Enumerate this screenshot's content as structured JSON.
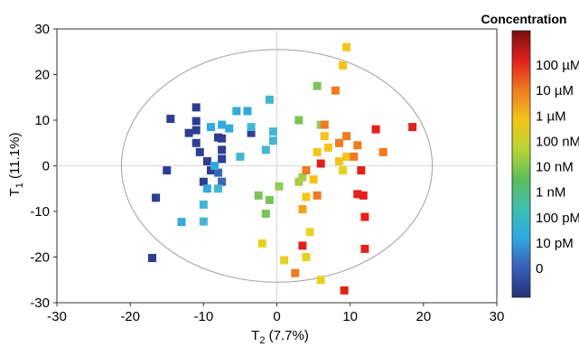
{
  "chart_data": {
    "type": "scatter",
    "xlabel_main": "T",
    "xlabel_sub": "2",
    "xlabel_rest": " (7.7%)",
    "ylabel_main": "T",
    "ylabel_sub": "1",
    "ylabel_rest": " (11.1%)",
    "xlim": [
      -30,
      30
    ],
    "ylim": [
      -30,
      30
    ],
    "xticks": [
      -30,
      -20,
      -10,
      0,
      10,
      20,
      30
    ],
    "yticks": [
      -30,
      -20,
      -10,
      0,
      10,
      20,
      30
    ],
    "grid": false,
    "zero_lines": true,
    "confidence_ellipse": {
      "center": [
        0,
        0
      ],
      "rx": 21.2,
      "ry": 25.5
    },
    "colorbar": {
      "title": "Concentration",
      "labels": [
        "100 µM",
        "10 µM",
        "1 µM",
        "100 nM",
        "10 nM",
        "1 nM",
        "100 pM",
        "10 pM",
        "0"
      ],
      "colors": [
        "#7b0e12",
        "#e3201b",
        "#f07a1f",
        "#f2c419",
        "#b8d432",
        "#5cbd5a",
        "#3cbfb0",
        "#2ea8e0",
        "#3a5fb8",
        "#24317a"
      ]
    },
    "points": [
      {
        "x": -17,
        "y": -20.2,
        "c": "#2d3e93"
      },
      {
        "x": -16.5,
        "y": -7,
        "c": "#2d3e93"
      },
      {
        "x": -15,
        "y": -1,
        "c": "#2d3e93"
      },
      {
        "x": -14.5,
        "y": 10.3,
        "c": "#2d3e93"
      },
      {
        "x": -12,
        "y": 7.2,
        "c": "#2d3e93"
      },
      {
        "x": -11,
        "y": 12.8,
        "c": "#2d3e93"
      },
      {
        "x": -11,
        "y": 9.8,
        "c": "#2d3e93"
      },
      {
        "x": -11,
        "y": 7.8,
        "c": "#2d3e93"
      },
      {
        "x": -11,
        "y": 5,
        "c": "#2d3e93"
      },
      {
        "x": -10.5,
        "y": 3,
        "c": "#2d3e93"
      },
      {
        "x": -10,
        "y": -3.5,
        "c": "#2d3e93"
      },
      {
        "x": -9.5,
        "y": 1,
        "c": "#2d3e93"
      },
      {
        "x": -9,
        "y": -1,
        "c": "#2d3e93"
      },
      {
        "x": -8,
        "y": 6.2,
        "c": "#2d3e93"
      },
      {
        "x": -7.5,
        "y": 6,
        "c": "#2d3e93"
      },
      {
        "x": -7.5,
        "y": 3.5,
        "c": "#2d3e93"
      },
      {
        "x": -7.5,
        "y": 1.5,
        "c": "#2d3e93"
      },
      {
        "x": -3.5,
        "y": 7.2,
        "c": "#2d3e93"
      },
      {
        "x": -8,
        "y": -1.5,
        "c": "#3a66b5"
      },
      {
        "x": -7.5,
        "y": -3.5,
        "c": "#3a66b5"
      },
      {
        "x": -13,
        "y": -12.3,
        "c": "#33a9dd"
      },
      {
        "x": -10,
        "y": -12.2,
        "c": "#45b6cf"
      },
      {
        "x": -10,
        "y": -8.5,
        "c": "#45b6cf"
      },
      {
        "x": -9.5,
        "y": -5,
        "c": "#33a9dd"
      },
      {
        "x": -9,
        "y": 8.5,
        "c": "#33a9dd"
      },
      {
        "x": -8.5,
        "y": 0,
        "c": "#33a9dd"
      },
      {
        "x": -8,
        "y": -5,
        "c": "#45b6cf"
      },
      {
        "x": -7.5,
        "y": 9,
        "c": "#33a9dd"
      },
      {
        "x": -6.5,
        "y": 8.2,
        "c": "#33a9dd"
      },
      {
        "x": -5.5,
        "y": 12,
        "c": "#33a9dd"
      },
      {
        "x": -4,
        "y": 12,
        "c": "#33a9dd"
      },
      {
        "x": -5,
        "y": 2,
        "c": "#45b6cf"
      },
      {
        "x": -3.5,
        "y": 8.5,
        "c": "#45b6cf"
      },
      {
        "x": -1.5,
        "y": 3.5,
        "c": "#45b6cf"
      },
      {
        "x": -1,
        "y": 14.5,
        "c": "#45b6cf"
      },
      {
        "x": -0.5,
        "y": 7.5,
        "c": "#45b6cf"
      },
      {
        "x": -0.5,
        "y": 5.5,
        "c": "#45b6cf"
      },
      {
        "x": -2.5,
        "y": -6.5,
        "c": "#7ac35a"
      },
      {
        "x": -1.5,
        "y": -10.5,
        "c": "#7ac35a"
      },
      {
        "x": -1,
        "y": -7.5,
        "c": "#7ac35a"
      },
      {
        "x": 0.3,
        "y": -4.5,
        "c": "#93cb5a"
      },
      {
        "x": 3,
        "y": 10,
        "c": "#7ac35a"
      },
      {
        "x": 5.5,
        "y": 17.5,
        "c": "#7ac35a"
      },
      {
        "x": 6,
        "y": 9,
        "c": "#93cb5a"
      },
      {
        "x": 3,
        "y": -3.5,
        "c": "#a6cf44"
      },
      {
        "x": 3.5,
        "y": -2.5,
        "c": "#a6cf44"
      },
      {
        "x": -2,
        "y": -17,
        "c": "#e6d21e"
      },
      {
        "x": 1,
        "y": -20.7,
        "c": "#e6d21e"
      },
      {
        "x": 4,
        "y": -20,
        "c": "#e6d21e"
      },
      {
        "x": 4.5,
        "y": -14.5,
        "c": "#e6d21e"
      },
      {
        "x": 6,
        "y": -25,
        "c": "#e6d21e"
      },
      {
        "x": 4,
        "y": -6.8,
        "c": "#f4c418"
      },
      {
        "x": 5,
        "y": -3,
        "c": "#f4c418"
      },
      {
        "x": 5.5,
        "y": 3,
        "c": "#f4c418"
      },
      {
        "x": 6.5,
        "y": 6.5,
        "c": "#f4c418"
      },
      {
        "x": 7,
        "y": 4,
        "c": "#f4c418"
      },
      {
        "x": 8.5,
        "y": 1,
        "c": "#f4c418"
      },
      {
        "x": 9,
        "y": -1,
        "c": "#e6d21e"
      },
      {
        "x": 9.5,
        "y": 2,
        "c": "#f4c418"
      },
      {
        "x": 9,
        "y": 22,
        "c": "#f4c418"
      },
      {
        "x": 9.5,
        "y": 26,
        "c": "#f4c418"
      },
      {
        "x": 3.5,
        "y": -9.5,
        "c": "#f4a11b"
      },
      {
        "x": 5.5,
        "y": -6.5,
        "c": "#f07a1f"
      },
      {
        "x": 4,
        "y": -1,
        "c": "#f07a1f"
      },
      {
        "x": 6.5,
        "y": 9,
        "c": "#f07a1f"
      },
      {
        "x": 8,
        "y": 16.5,
        "c": "#f07a1f"
      },
      {
        "x": 8.5,
        "y": 5,
        "c": "#f07a1f"
      },
      {
        "x": 9.5,
        "y": 6.5,
        "c": "#f07a1f"
      },
      {
        "x": 10.5,
        "y": 2,
        "c": "#f07a1f"
      },
      {
        "x": 11,
        "y": 4.5,
        "c": "#f07a1f"
      },
      {
        "x": 14.5,
        "y": 3,
        "c": "#f07a1f"
      },
      {
        "x": 2.5,
        "y": -23.5,
        "c": "#f07a1f"
      },
      {
        "x": 3.5,
        "y": -17.5,
        "c": "#e3201b"
      },
      {
        "x": 6,
        "y": 0.5,
        "c": "#e3201b"
      },
      {
        "x": 9.2,
        "y": -27.3,
        "c": "#e3201b"
      },
      {
        "x": 11,
        "y": -6.2,
        "c": "#e3201b"
      },
      {
        "x": 11.5,
        "y": -1,
        "c": "#e3201b"
      },
      {
        "x": 11.8,
        "y": -6.5,
        "c": "#e3201b"
      },
      {
        "x": 12,
        "y": -11.2,
        "c": "#e3201b"
      },
      {
        "x": 12,
        "y": -18.2,
        "c": "#e3201b"
      },
      {
        "x": 13.5,
        "y": 8,
        "c": "#e3201b"
      },
      {
        "x": 18.5,
        "y": 8.5,
        "c": "#e3201b"
      }
    ]
  }
}
